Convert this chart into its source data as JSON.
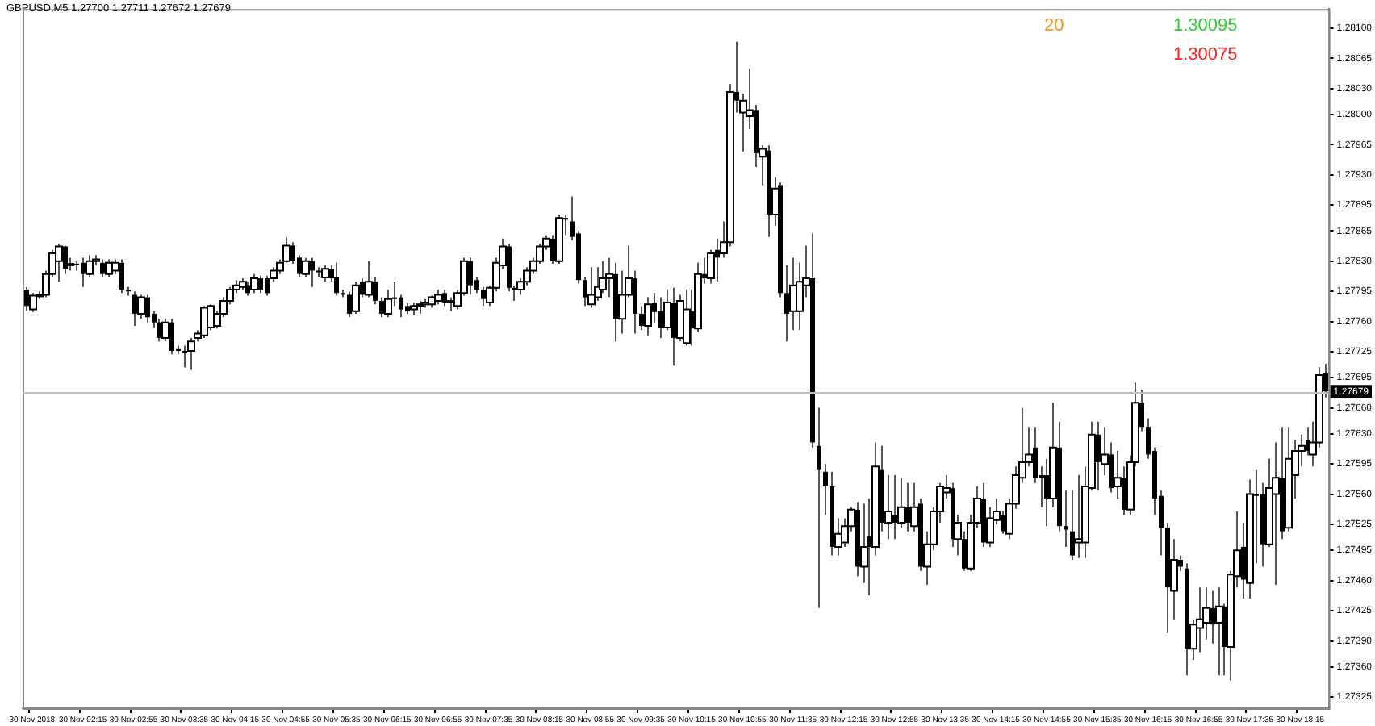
{
  "chart_data": {
    "type": "candlestick",
    "title": "GBPUSD,M5 1.27700 1.27711 1.27672 1.27679",
    "annotations": [
      "20",
      "1.30095",
      "1.30075"
    ],
    "categories": [
      null,
      "30 Nov 2018",
      null,
      null,
      null,
      null,
      null,
      null,
      null,
      "30 Nov 02:15",
      null,
      null,
      null,
      null,
      null,
      null,
      null,
      "30 Nov 02:55",
      null,
      null,
      null,
      null,
      null,
      null,
      null,
      "30 Nov 03:35",
      null,
      null,
      null,
      null,
      null,
      null,
      null,
      "30 Nov 04:15",
      null,
      null,
      null,
      null,
      null,
      null,
      null,
      "30 Nov 04:55",
      null,
      null,
      null,
      null,
      null,
      null,
      null,
      "30 Nov 05:35",
      null,
      null,
      null,
      null,
      null,
      null,
      null,
      "30 Nov 06:15",
      null,
      null,
      null,
      null,
      null,
      null,
      null,
      "30 Nov 06:55",
      null,
      null,
      null,
      null,
      null,
      null,
      null,
      "30 Nov 07:35",
      null,
      null,
      null,
      null,
      null,
      null,
      null,
      "30 Nov 08:15",
      null,
      null,
      null,
      null,
      null,
      null,
      null,
      "30 Nov 08:55",
      null,
      null,
      null,
      null,
      null,
      null,
      null,
      "30 Nov 09:35",
      null,
      null,
      null,
      null,
      null,
      null,
      null,
      "30 Nov 10:15",
      null,
      null,
      null,
      null,
      null,
      null,
      null,
      "30 Nov 10:55",
      null,
      null,
      null,
      null,
      null,
      null,
      null,
      "30 Nov 11:35",
      null,
      null,
      null,
      null,
      null,
      null,
      null,
      "30 Nov 12:15",
      null,
      null,
      null,
      null,
      null,
      null,
      null,
      "30 Nov 12:55",
      null,
      null,
      null,
      null,
      null,
      null,
      null,
      "30 Nov 13:35",
      null,
      null,
      null,
      null,
      null,
      null,
      null,
      "30 Nov 14:15",
      null,
      null,
      null,
      null,
      null,
      null,
      null,
      "30 Nov 14:55",
      null,
      null,
      null,
      null,
      null,
      null,
      null,
      "30 Nov 15:35",
      null,
      null,
      null,
      null,
      null,
      null,
      null,
      "30 Nov 16:15",
      null,
      null,
      null,
      null,
      null,
      null,
      null,
      "30 Nov 16:55",
      null,
      null,
      null,
      null,
      null,
      null,
      null,
      "30 Nov 17:35",
      null,
      null,
      null,
      null,
      null,
      null,
      null,
      "30 Nov 18:15",
      null,
      null,
      null,
      null
    ],
    "ohlc": [
      [
        1.27797,
        1.278,
        1.27772,
        1.27778
      ],
      [
        1.27774,
        1.27793,
        1.27771,
        1.2779
      ],
      [
        1.2779,
        1.27795,
        1.27786,
        1.27791
      ],
      [
        1.27791,
        1.27819,
        1.27788,
        1.27815
      ],
      [
        1.27815,
        1.27843,
        1.27811,
        1.27839
      ],
      [
        1.2783,
        1.2785,
        1.27806,
        1.27847
      ],
      [
        1.27847,
        1.27848,
        1.27815,
        1.27821
      ],
      [
        1.27825,
        1.27834,
        1.27819,
        1.27827
      ],
      [
        1.27827,
        1.2783,
        1.27819,
        1.27825
      ],
      [
        1.27828,
        1.27834,
        1.278,
        1.27815
      ],
      [
        1.27815,
        1.27837,
        1.27811,
        1.2783
      ],
      [
        1.2783,
        1.27837,
        1.27825,
        1.27832
      ],
      [
        1.27828,
        1.27832,
        1.27811,
        1.27815
      ],
      [
        1.27815,
        1.27832,
        1.27811,
        1.27828
      ],
      [
        1.27819,
        1.27832,
        1.27815,
        1.27828
      ],
      [
        1.27828,
        1.27832,
        1.27793,
        1.27797
      ],
      [
        1.27797,
        1.278,
        1.2779,
        1.27795
      ],
      [
        1.27791,
        1.27795,
        1.27755,
        1.27769
      ],
      [
        1.27769,
        1.27791,
        1.27763,
        1.27788
      ],
      [
        1.27788,
        1.27791,
        1.27759,
        1.27765
      ],
      [
        1.27769,
        1.27772,
        1.27753,
        1.27759
      ],
      [
        1.27759,
        1.27763,
        1.27737,
        1.27741
      ],
      [
        1.27741,
        1.27763,
        1.27737,
        1.27759
      ],
      [
        1.27759,
        1.27763,
        1.27722,
        1.27726
      ],
      [
        1.27728,
        1.27732,
        1.27722,
        1.27726
      ],
      [
        1.27726,
        1.27732,
        1.27707,
        1.27724
      ],
      [
        1.27726,
        1.27741,
        1.27704,
        1.27737
      ],
      [
        1.27741,
        1.2775,
        1.27737,
        1.27746
      ],
      [
        1.27744,
        1.27778,
        1.27741,
        1.27776
      ],
      [
        1.27753,
        1.2778,
        1.2775,
        1.27778
      ],
      [
        1.27755,
        1.27772,
        1.27752,
        1.27769
      ],
      [
        1.27769,
        1.27788,
        1.27765,
        1.27784
      ],
      [
        1.27784,
        1.278,
        1.2778,
        1.27797
      ],
      [
        1.27797,
        1.27808,
        1.27793,
        1.27802
      ],
      [
        1.278,
        1.2781,
        1.27797,
        1.27806
      ],
      [
        1.27802,
        1.27806,
        1.2779,
        1.27793
      ],
      [
        1.27797,
        1.27815,
        1.27793,
        1.2781
      ],
      [
        1.2781,
        1.27813,
        1.27793,
        1.27797
      ],
      [
        1.2781,
        1.27813,
        1.2779,
        1.27793
      ],
      [
        1.2781,
        1.27823,
        1.27806,
        1.27819
      ],
      [
        1.27819,
        1.27832,
        1.27815,
        1.27828
      ],
      [
        1.2783,
        1.27858,
        1.27828,
        1.27848
      ],
      [
        1.27848,
        1.27852,
        1.27827,
        1.2783
      ],
      [
        1.27834,
        1.27837,
        1.27811,
        1.27815
      ],
      [
        1.27815,
        1.27834,
        1.27811,
        1.2783
      ],
      [
        1.2783,
        1.27834,
        1.278,
        1.27819
      ],
      [
        1.27819,
        1.27823,
        1.27811,
        1.27817
      ],
      [
        1.27811,
        1.27825,
        1.27806,
        1.27821
      ],
      [
        1.27821,
        1.27825,
        1.27806,
        1.2781
      ],
      [
        1.27811,
        1.27828,
        1.2779,
        1.27793
      ],
      [
        1.27793,
        1.27797,
        1.27788,
        1.27791
      ],
      [
        1.27791,
        1.27795,
        1.27765,
        1.27769
      ],
      [
        1.27772,
        1.27806,
        1.27769,
        1.27802
      ],
      [
        1.27806,
        1.2781,
        1.27788,
        1.27791
      ],
      [
        1.27791,
        1.2783,
        1.27788,
        1.27806
      ],
      [
        1.27806,
        1.27811,
        1.2778,
        1.27784
      ],
      [
        1.27784,
        1.27788,
        1.27765,
        1.27769
      ],
      [
        1.27769,
        1.27797,
        1.27765,
        1.27786
      ],
      [
        1.27788,
        1.27806,
        1.27778,
        1.27786
      ],
      [
        1.27788,
        1.27791,
        1.27765,
        1.27774
      ],
      [
        1.27778,
        1.27782,
        1.27769,
        1.27772
      ],
      [
        1.27774,
        1.27782,
        1.27767,
        1.27778
      ],
      [
        1.27778,
        1.27784,
        1.27769,
        1.2778
      ],
      [
        1.2778,
        1.27786,
        1.27776,
        1.27782
      ],
      [
        1.2778,
        1.2779,
        1.27776,
        1.27788
      ],
      [
        1.27784,
        1.27797,
        1.2778,
        1.27791
      ],
      [
        1.27793,
        1.27797,
        1.27778,
        1.27782
      ],
      [
        1.27782,
        1.27788,
        1.27772,
        1.27784
      ],
      [
        1.27778,
        1.27797,
        1.27774,
        1.27793
      ],
      [
        1.27793,
        1.27834,
        1.2779,
        1.2783
      ],
      [
        1.2783,
        1.27834,
        1.27791,
        1.27802
      ],
      [
        1.27808,
        1.27811,
        1.27793,
        1.27797
      ],
      [
        1.27797,
        1.278,
        1.27778,
        1.27786
      ],
      [
        1.27782,
        1.27802,
        1.27778,
        1.27799
      ],
      [
        1.27799,
        1.27834,
        1.27795,
        1.27828
      ],
      [
        1.27825,
        1.27856,
        1.27821,
        1.27847
      ],
      [
        1.27847,
        1.2785,
        1.27795,
        1.27799
      ],
      [
        1.27799,
        1.27802,
        1.27784,
        1.27797
      ],
      [
        1.27797,
        1.2781,
        1.27791,
        1.27806
      ],
      [
        1.27806,
        1.27823,
        1.27802,
        1.27819
      ],
      [
        1.27819,
        1.27834,
        1.27815,
        1.2783
      ],
      [
        1.2783,
        1.2785,
        1.27827,
        1.27847
      ],
      [
        1.27847,
        1.2786,
        1.27843,
        1.27856
      ],
      [
        1.27856,
        1.2786,
        1.27827,
        1.2783
      ],
      [
        1.2783,
        1.27884,
        1.27827,
        1.2788
      ],
      [
        1.2788,
        1.27884,
        1.2786,
        1.27878
      ],
      [
        1.27876,
        1.27905,
        1.27854,
        1.27858
      ],
      [
        1.27862,
        1.27865,
        1.27804,
        1.27808
      ],
      [
        1.27808,
        1.27811,
        1.27778,
        1.27788
      ],
      [
        1.2778,
        1.27823,
        1.27776,
        1.27791
      ],
      [
        1.27788,
        1.27823,
        1.27784,
        1.278
      ],
      [
        1.27797,
        1.2783,
        1.27793,
        1.2781
      ],
      [
        1.2781,
        1.27834,
        1.27788,
        1.27815
      ],
      [
        1.27815,
        1.27828,
        1.27737,
        1.27763
      ],
      [
        1.27763,
        1.27819,
        1.27746,
        1.27791
      ],
      [
        1.27791,
        1.27848,
        1.27788,
        1.2781
      ],
      [
        1.2781,
        1.27819,
        1.27746,
        1.27769
      ],
      [
        1.27769,
        1.27778,
        1.2775,
        1.27755
      ],
      [
        1.27755,
        1.27788,
        1.27744,
        1.2778
      ],
      [
        1.27782,
        1.27793,
        1.27759,
        1.27771
      ],
      [
        1.27772,
        1.27788,
        1.27741,
        1.27753
      ],
      [
        1.27753,
        1.27797,
        1.2775,
        1.27782
      ],
      [
        1.27782,
        1.27799,
        1.27709,
        1.27741
      ],
      [
        1.27741,
        1.27791,
        1.27737,
        1.27784
      ],
      [
        1.27735,
        1.27797,
        1.27732,
        1.27774
      ],
      [
        1.27772,
        1.27797,
        1.27732,
        1.27752
      ],
      [
        1.27752,
        1.27828,
        1.27748,
        1.27815
      ],
      [
        1.27815,
        1.27834,
        1.27804,
        1.2781
      ],
      [
        1.2781,
        1.27843,
        1.27804,
        1.27839
      ],
      [
        1.27843,
        1.27856,
        1.27806,
        1.27834
      ],
      [
        1.27839,
        1.27876,
        1.27834,
        1.27852
      ],
      [
        1.27852,
        1.28035,
        1.27847,
        1.28026
      ],
      [
        1.28026,
        1.28084,
        1.28002,
        1.28016
      ],
      [
        1.28002,
        1.28024,
        1.27957,
        1.28016
      ],
      [
        1.27998,
        1.28053,
        1.27983,
        1.28005
      ],
      [
        1.28005,
        1.28011,
        1.27939,
        1.27955
      ],
      [
        1.27951,
        1.27964,
        1.27918,
        1.2796
      ],
      [
        1.27958,
        1.27964,
        1.27858,
        1.27884
      ],
      [
        1.27884,
        1.27927,
        1.27871,
        1.27914
      ],
      [
        1.27918,
        1.27921,
        1.27788,
        1.27793
      ],
      [
        1.27793,
        1.27825,
        1.27737,
        1.27769
      ],
      [
        1.27772,
        1.27834,
        1.2775,
        1.27802
      ],
      [
        1.27772,
        1.27828,
        1.2775,
        1.27806
      ],
      [
        1.27802,
        1.27848,
        1.27788,
        1.2781
      ],
      [
        1.2781,
        1.27862,
        1.27614,
        1.2762
      ],
      [
        1.27616,
        1.2766,
        1.27428,
        1.27588
      ],
      [
        1.27586,
        1.27595,
        1.27536,
        1.27569
      ],
      [
        1.27569,
        1.27586,
        1.27489,
        1.27499
      ],
      [
        1.27499,
        1.27532,
        1.27489,
        1.27514
      ],
      [
        1.27504,
        1.27532,
        1.27499,
        1.27523
      ],
      [
        1.27523,
        1.27545,
        1.27517,
        1.27542
      ],
      [
        1.27542,
        1.27551,
        1.27465,
        1.27476
      ],
      [
        1.27476,
        1.27549,
        1.27457,
        1.27499
      ],
      [
        1.27511,
        1.27555,
        1.27443,
        1.27499
      ],
      [
        1.27499,
        1.2762,
        1.27489,
        1.27592
      ],
      [
        1.27588,
        1.27616,
        1.27517,
        1.27527
      ],
      [
        1.27527,
        1.27582,
        1.27508,
        1.2754
      ],
      [
        1.27536,
        1.27582,
        1.27508,
        1.27527
      ],
      [
        1.27527,
        1.27579,
        1.27521,
        1.27545
      ],
      [
        1.27545,
        1.27573,
        1.27517,
        1.27527
      ],
      [
        1.27523,
        1.27573,
        1.27517,
        1.27545
      ],
      [
        1.27549,
        1.27555,
        1.27471,
        1.27476
      ],
      [
        1.27476,
        1.27517,
        1.27455,
        1.27502
      ],
      [
        1.27502,
        1.27545,
        1.27495,
        1.2754
      ],
      [
        1.2754,
        1.27573,
        1.27527,
        1.27569
      ],
      [
        1.27562,
        1.27582,
        1.27555,
        1.27567
      ],
      [
        1.27567,
        1.27573,
        1.27499,
        1.27508
      ],
      [
        1.27508,
        1.27536,
        1.27489,
        1.27527
      ],
      [
        1.27508,
        1.27517,
        1.27471,
        1.27474
      ],
      [
        1.27474,
        1.27536,
        1.27471,
        1.27527
      ],
      [
        1.27527,
        1.27569,
        1.27521,
        1.27555
      ],
      [
        1.27555,
        1.27573,
        1.27499,
        1.27504
      ],
      [
        1.27504,
        1.27545,
        1.27499,
        1.27532
      ],
      [
        1.2753,
        1.27555,
        1.27525,
        1.2754
      ],
      [
        1.27536,
        1.2754,
        1.27514,
        1.27517
      ],
      [
        1.27514,
        1.27555,
        1.27508,
        1.27549
      ],
      [
        1.27549,
        1.27592,
        1.27543,
        1.27582
      ],
      [
        1.27579,
        1.2766,
        1.27573,
        1.27597
      ],
      [
        1.27597,
        1.27638,
        1.27592,
        1.27606
      ],
      [
        1.27614,
        1.27638,
        1.27573,
        1.27579
      ],
      [
        1.27582,
        1.27592,
        1.27545,
        1.27579
      ],
      [
        1.27582,
        1.27601,
        1.27523,
        1.27555
      ],
      [
        1.27555,
        1.27666,
        1.27545,
        1.27614
      ],
      [
        1.27614,
        1.27644,
        1.27517,
        1.27523
      ],
      [
        1.27523,
        1.27564,
        1.27499,
        1.27519
      ],
      [
        1.27517,
        1.27564,
        1.27484,
        1.27489
      ],
      [
        1.27504,
        1.27582,
        1.27486,
        1.27508
      ],
      [
        1.27504,
        1.27592,
        1.27486,
        1.27569
      ],
      [
        1.27567,
        1.27644,
        1.27564,
        1.27629
      ],
      [
        1.27629,
        1.27644,
        1.27564,
        1.27597
      ],
      [
        1.27595,
        1.27638,
        1.27582,
        1.27606
      ],
      [
        1.27606,
        1.2762,
        1.27562,
        1.27567
      ],
      [
        1.27569,
        1.2761,
        1.27555,
        1.27579
      ],
      [
        1.27579,
        1.27592,
        1.27536,
        1.27542
      ],
      [
        1.27542,
        1.27605,
        1.27536,
        1.27597
      ],
      [
        1.27597,
        1.27689,
        1.27592,
        1.27666
      ],
      [
        1.27666,
        1.27681,
        1.27633,
        1.27638
      ],
      [
        1.27638,
        1.27648,
        1.27601,
        1.27606
      ],
      [
        1.2761,
        1.27614,
        1.27536,
        1.27555
      ],
      [
        1.27558,
        1.27564,
        1.27489,
        1.27521
      ],
      [
        1.27521,
        1.27527,
        1.27399,
        1.27452
      ],
      [
        1.27448,
        1.27508,
        1.27415,
        1.27484
      ],
      [
        1.27484,
        1.27489,
        1.27471,
        1.27476
      ],
      [
        1.27474,
        1.2748,
        1.2735,
        1.27381
      ],
      [
        1.27381,
        1.27415,
        1.27368,
        1.27409
      ],
      [
        1.27405,
        1.27452,
        1.27377,
        1.27415
      ],
      [
        1.27411,
        1.27452,
        1.27392,
        1.27428
      ],
      [
        1.27428,
        1.27448,
        1.27387,
        1.27409
      ],
      [
        1.27411,
        1.27452,
        1.2735,
        1.2743
      ],
      [
        1.2743,
        1.27433,
        1.2735,
        1.27383
      ],
      [
        1.27383,
        1.27471,
        1.27344,
        1.27467
      ],
      [
        1.27465,
        1.2754,
        1.27452,
        1.27495
      ],
      [
        1.27499,
        1.27527,
        1.27439,
        1.27461
      ],
      [
        1.27457,
        1.27577,
        1.27439,
        1.2756
      ],
      [
        1.2756,
        1.27588,
        1.2748,
        1.27558
      ],
      [
        1.2756,
        1.27573,
        1.27476,
        1.27502
      ],
      [
        1.27502,
        1.27601,
        1.27499,
        1.27567
      ],
      [
        1.2756,
        1.2762,
        1.27455,
        1.27579
      ],
      [
        1.27579,
        1.27638,
        1.27508,
        1.27517
      ],
      [
        1.27521,
        1.27638,
        1.27517,
        1.27601
      ],
      [
        1.27582,
        1.27623,
        1.27555,
        1.2761
      ],
      [
        1.2761,
        1.27629,
        1.27592,
        1.27616
      ],
      [
        1.27623,
        1.27638,
        1.27605,
        1.2761
      ],
      [
        1.27606,
        1.27644,
        1.27592,
        1.2762
      ],
      [
        1.2762,
        1.27707,
        1.27614,
        1.27698
      ],
      [
        1.277,
        1.27711,
        1.27672,
        1.27679
      ]
    ],
    "ylim": [
      1.27312,
      1.28122
    ],
    "yticks": [
      {
        "value": 1.281,
        "label": "1.28100"
      },
      {
        "value": 1.28065,
        "label": "1.28065"
      },
      {
        "value": 1.2803,
        "label": "1.28030"
      },
      {
        "value": 1.28,
        "label": "1.28000"
      },
      {
        "value": 1.27965,
        "label": "1.27965"
      },
      {
        "value": 1.2793,
        "label": "1.27930"
      },
      {
        "value": 1.27895,
        "label": "1.27895"
      },
      {
        "value": 1.27865,
        "label": "1.27865"
      },
      {
        "value": 1.2783,
        "label": "1.27830"
      },
      {
        "value": 1.27795,
        "label": "1.27795"
      },
      {
        "value": 1.2776,
        "label": "1.27760"
      },
      {
        "value": 1.27725,
        "label": "1.27725"
      },
      {
        "value": 1.27695,
        "label": "1.27695"
      },
      {
        "value": 1.2766,
        "label": "1.27660"
      },
      {
        "value": 1.2763,
        "label": "1.27630"
      },
      {
        "value": 1.27595,
        "label": "1.27595"
      },
      {
        "value": 1.2756,
        "label": "1.27560"
      },
      {
        "value": 1.27525,
        "label": "1.27525"
      },
      {
        "value": 1.27495,
        "label": "1.27495"
      },
      {
        "value": 1.2746,
        "label": "1.27460"
      },
      {
        "value": 1.27425,
        "label": "1.27425"
      },
      {
        "value": 1.2739,
        "label": "1.27390"
      },
      {
        "value": 1.2736,
        "label": "1.27360"
      },
      {
        "value": 1.27325,
        "label": "1.27325"
      }
    ],
    "grid": false,
    "ref_lines": [
      {
        "axis": "y",
        "value": 1.27679,
        "label": "1.27679"
      }
    ]
  }
}
